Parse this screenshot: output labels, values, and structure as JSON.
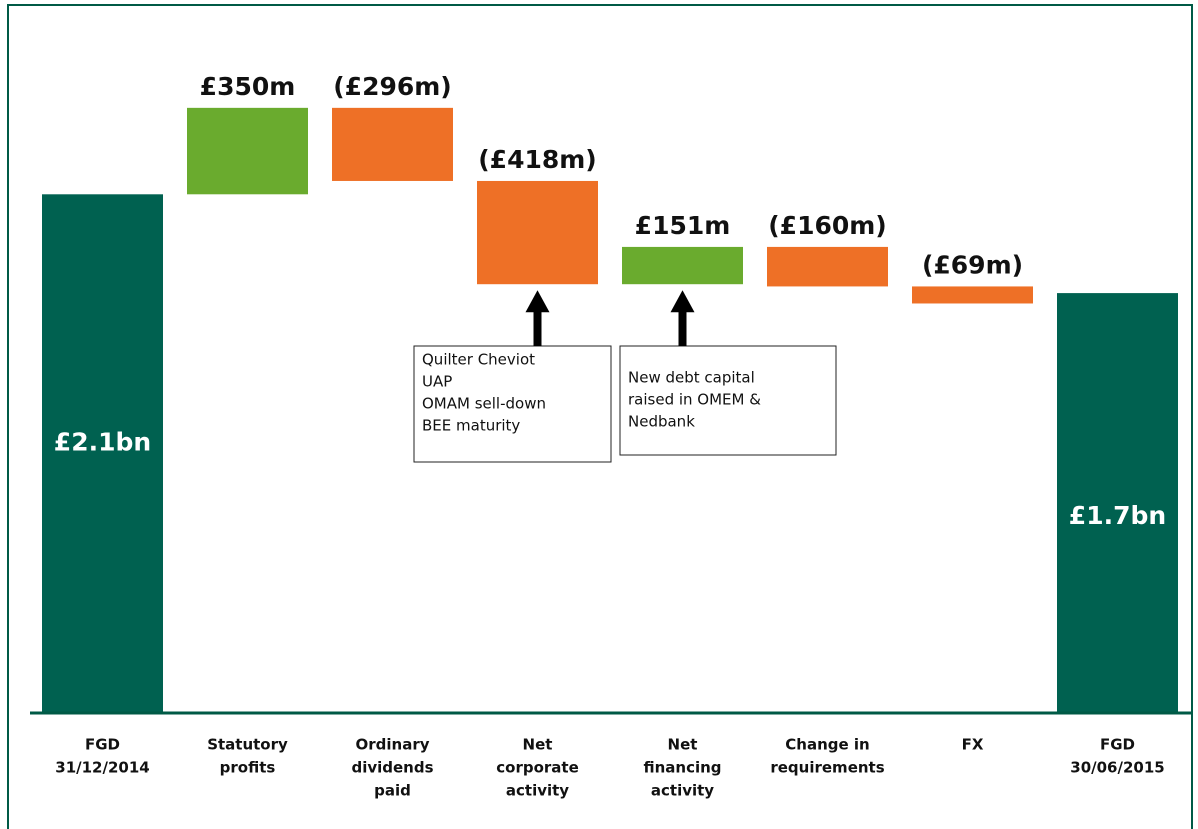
{
  "chart_data": {
    "type": "waterfall",
    "categories": [
      [
        "FGD",
        "31/12/2014"
      ],
      [
        "Statutory",
        "profits"
      ],
      [
        "Ordinary",
        "dividends",
        "paid"
      ],
      [
        "Net",
        "corporate",
        "activity"
      ],
      [
        "Net",
        "financing",
        "activity"
      ],
      [
        "Change in",
        "requirements"
      ],
      [
        "FX"
      ],
      [
        "FGD",
        "30/06/2015"
      ]
    ],
    "measure": [
      "total",
      "relative",
      "relative",
      "relative",
      "relative",
      "relative",
      "relative",
      "total"
    ],
    "values": [
      2100,
      350,
      -296,
      -418,
      151,
      -160,
      -69,
      1700
    ],
    "value_labels": [
      "£2.1bn",
      "£350m",
      "(£296m)",
      "(£418m)",
      "£151m",
      "(£160m)",
      "(£69m)",
      "£1.7bn"
    ],
    "colors": [
      "#006150",
      "#6aab2e",
      "#ee7026",
      "#ee7026",
      "#6aab2e",
      "#ee7026",
      "#ee7026",
      "#006150"
    ],
    "annotations": [
      {
        "target": 3,
        "lines": [
          "Quilter Cheviot",
          "UAP",
          "OMAM sell-down",
          "BEE maturity"
        ]
      },
      {
        "target": 4,
        "lines": [
          "New debt capital",
          "raised in OMEM &",
          "Nedbank"
        ]
      }
    ]
  }
}
